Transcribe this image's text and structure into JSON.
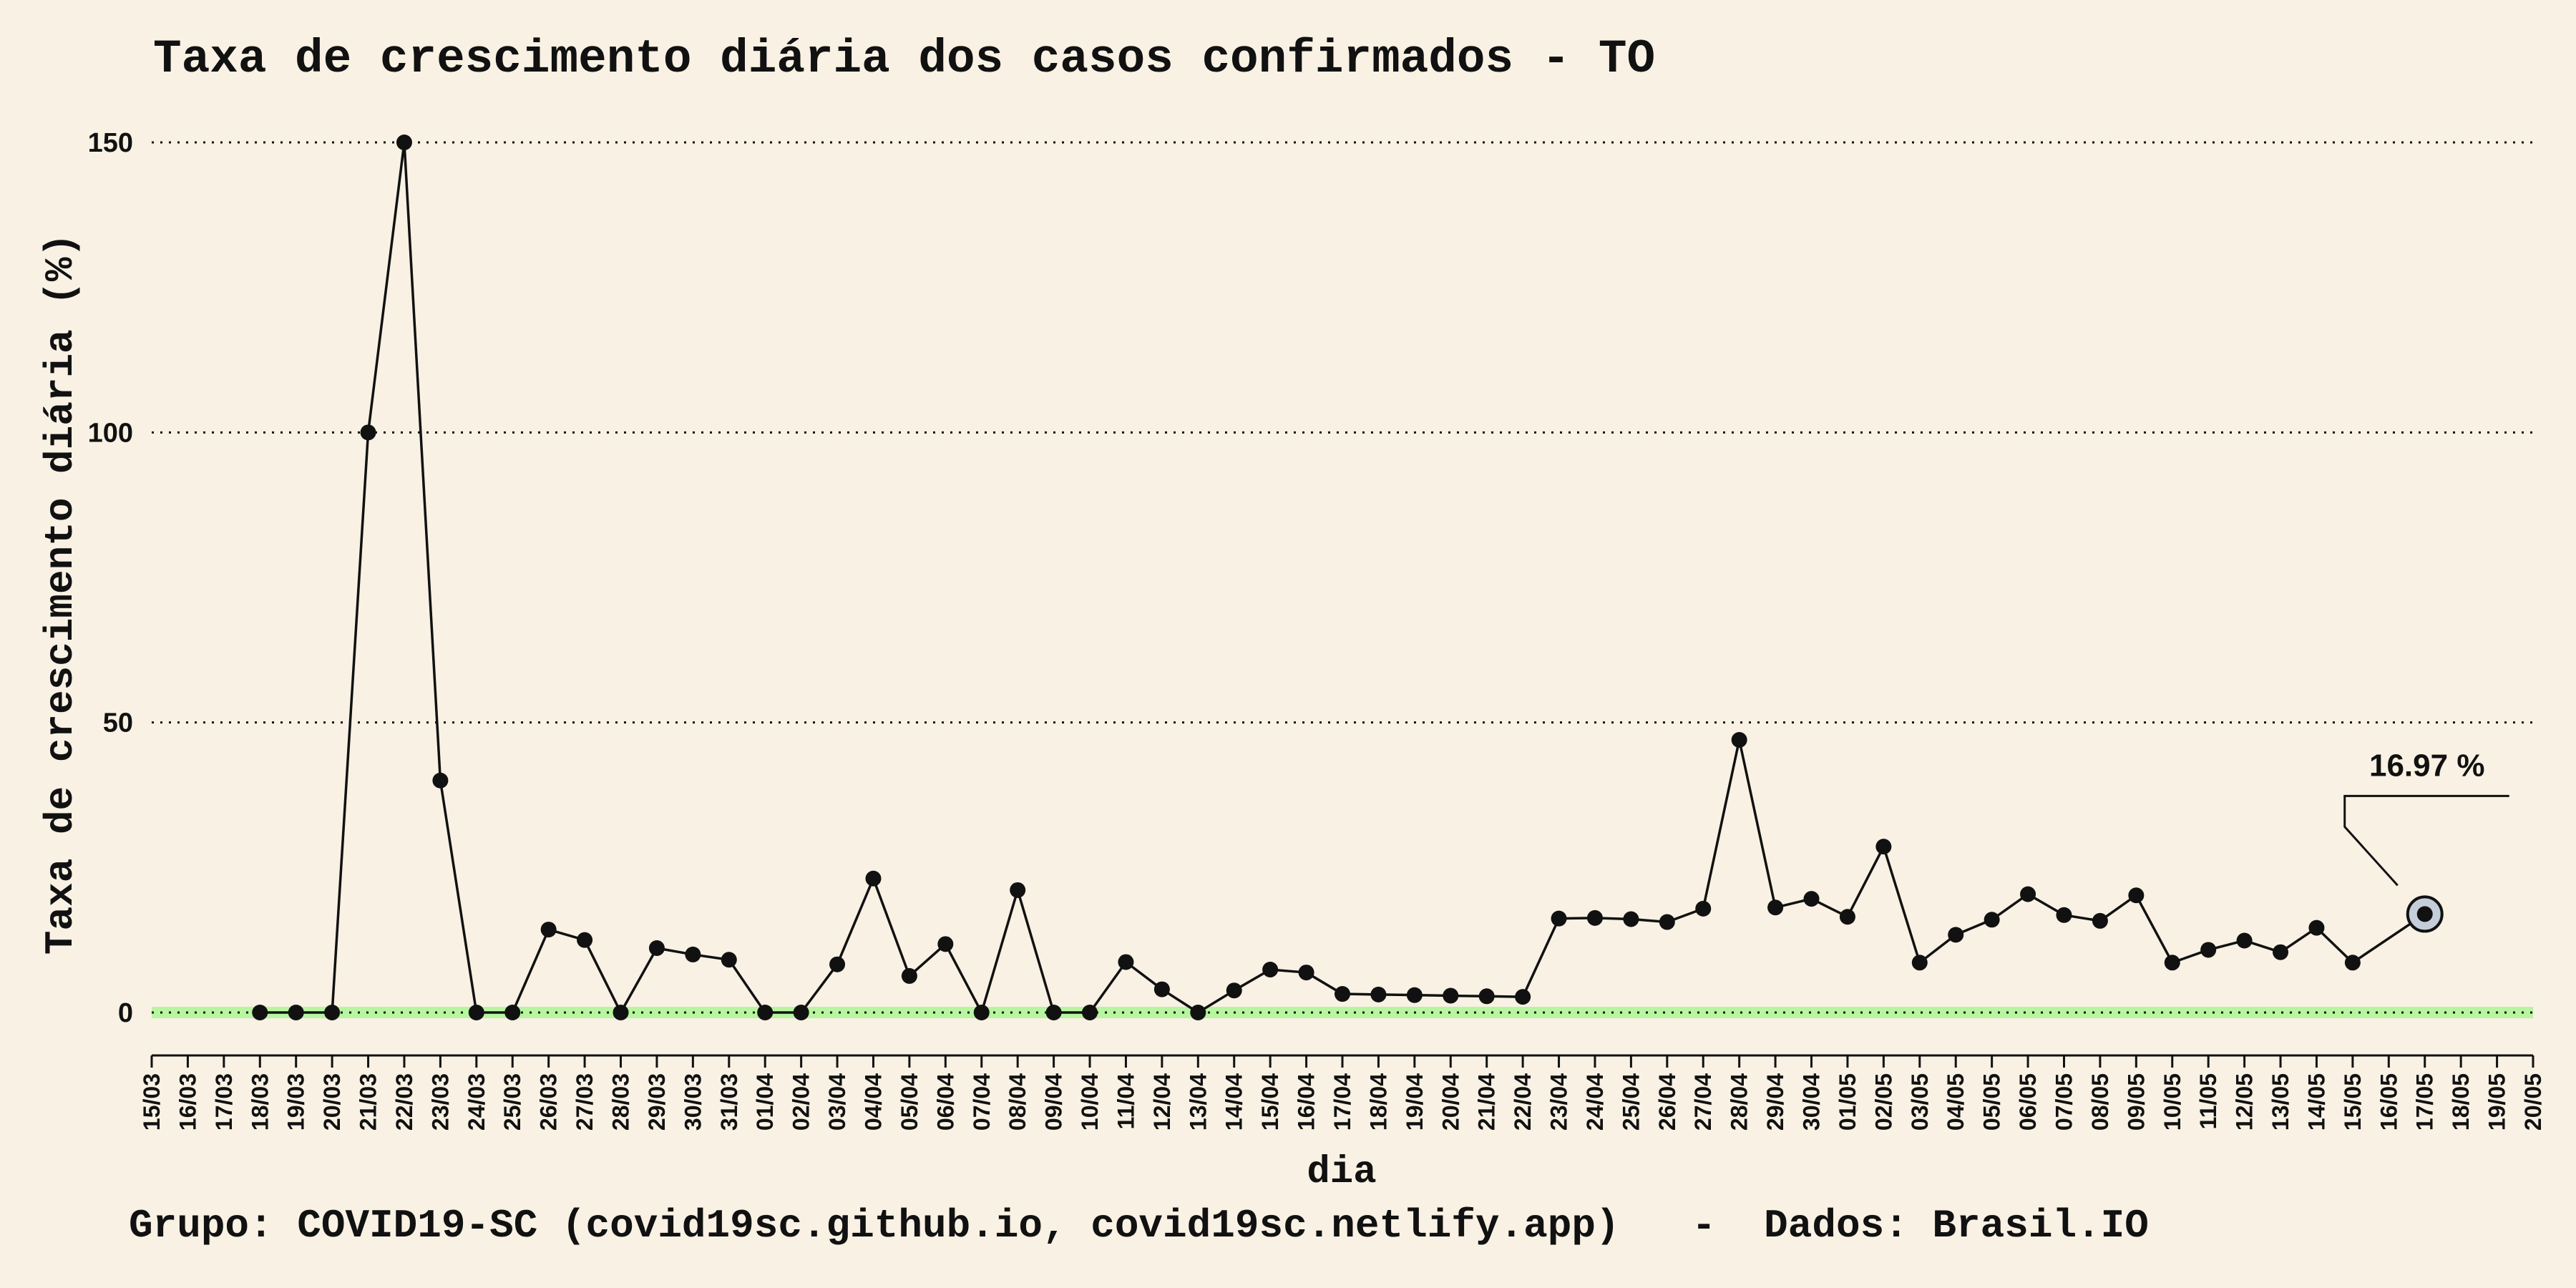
{
  "chart_data": {
    "type": "line",
    "title": "Taxa de crescimento diária dos casos confirmados - TO",
    "xlabel": "dia",
    "ylabel": "Taxa de crescimento diária (%)",
    "caption": "Grupo: COVID19-SC (covid19sc.github.io, covid19sc.netlify.app)   -  Dados: Brasil.IO",
    "ylim": [
      0,
      150
    ],
    "yticks": [
      0,
      50,
      100,
      150
    ],
    "grid": "horizontal dotted",
    "categories": [
      "15/03",
      "16/03",
      "17/03",
      "18/03",
      "19/03",
      "20/03",
      "21/03",
      "22/03",
      "23/03",
      "24/03",
      "25/03",
      "26/03",
      "27/03",
      "28/03",
      "29/03",
      "30/03",
      "31/03",
      "01/04",
      "02/04",
      "03/04",
      "04/04",
      "05/04",
      "06/04",
      "07/04",
      "08/04",
      "09/04",
      "10/04",
      "11/04",
      "12/04",
      "13/04",
      "14/04",
      "15/04",
      "16/04",
      "17/04",
      "18/04",
      "19/04",
      "20/04",
      "21/04",
      "22/04",
      "23/04",
      "24/04",
      "25/04",
      "26/04",
      "27/04",
      "28/04",
      "29/04",
      "30/04",
      "01/05",
      "02/05",
      "03/05",
      "04/05",
      "05/05",
      "06/05",
      "07/05",
      "08/05",
      "09/05",
      "10/05",
      "11/05",
      "12/05",
      "13/05",
      "14/05",
      "15/05",
      "16/05",
      "17/05",
      "18/05",
      "19/05",
      "20/05"
    ],
    "series": [
      {
        "values": [
          null,
          null,
          null,
          0,
          0,
          0,
          100,
          150,
          40,
          0,
          0,
          14.3,
          12.5,
          0,
          11.1,
          10,
          9.1,
          0,
          0,
          8.3,
          23.1,
          6.3,
          11.8,
          0,
          21.1,
          0,
          0,
          8.7,
          4,
          0,
          3.8,
          7.4,
          6.9,
          3.2,
          3.1,
          3,
          2.9,
          2.8,
          2.7,
          16.2,
          16.3,
          16.1,
          15.6,
          17.9,
          47,
          18.1,
          19.6,
          16.5,
          28.6,
          8.6,
          13.4,
          16,
          20.4,
          16.8,
          15.8,
          20.2,
          8.6,
          10.8,
          12.4,
          10.4,
          14.6,
          8.6,
          null,
          16.97,
          null,
          null,
          null
        ]
      }
    ],
    "highlight": {
      "category": "17/05",
      "value": 16.97,
      "label": "16.97 %"
    },
    "colors": {
      "background": "#f8f1e4",
      "line": "#111111",
      "zero_band": "#b8f5a0",
      "highlight_fill": "#c5ced8"
    }
  }
}
